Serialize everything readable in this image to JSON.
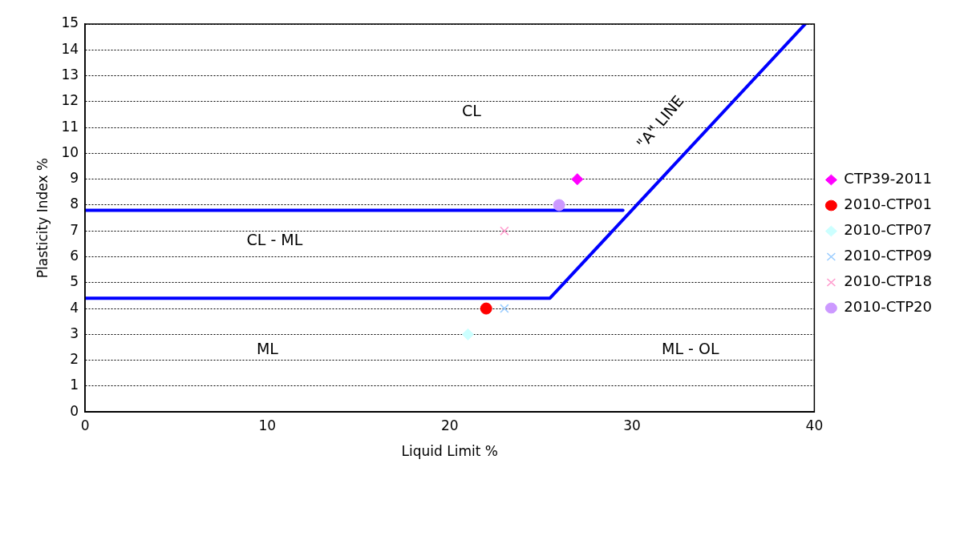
{
  "chart_data": {
    "type": "scatter",
    "xlabel": "Liquid Limit %",
    "ylabel": "Plasticity Index %",
    "xlim": [
      0,
      40
    ],
    "xticks": [
      0,
      10,
      20,
      30,
      40
    ],
    "ylim": [
      0,
      15
    ],
    "yticks": [
      0,
      1,
      2,
      3,
      4,
      5,
      6,
      7,
      8,
      9,
      10,
      11,
      12,
      13,
      14,
      15
    ],
    "grid": "y",
    "legend": "right",
    "series": [
      {
        "name": "CTP39-2011",
        "color": "#ff00ff",
        "marker": "diamond",
        "x": [
          27
        ],
        "values": [
          9
        ]
      },
      {
        "name": "2010-CTP01",
        "color": "#ff0000",
        "marker": "circle",
        "x": [
          22
        ],
        "values": [
          4
        ]
      },
      {
        "name": "2010-CTP07",
        "color": "#ccffff",
        "marker": "diamond",
        "x": [
          21
        ],
        "values": [
          3
        ]
      },
      {
        "name": "2010-CTP09",
        "color": "#99ccff",
        "marker": "cross",
        "x": [
          23
        ],
        "values": [
          4
        ]
      },
      {
        "name": "2010-CTP18",
        "color": "#ff99cc",
        "marker": "cross",
        "x": [
          23
        ],
        "values": [
          7
        ]
      },
      {
        "name": "2010-CTP20",
        "color": "#cc99ff",
        "marker": "circle",
        "x": [
          26
        ],
        "values": [
          8
        ]
      },
      {
        "type": "line",
        "color": "#0000ff",
        "marker": "none",
        "x": [
          0,
          29.5
        ],
        "values": [
          7.8,
          7.8
        ]
      },
      {
        "type": "line",
        "color": "#0000ff",
        "marker": "none",
        "x": [
          0,
          25.5,
          39.5
        ],
        "values": [
          4.4,
          4.4,
          15
        ]
      }
    ],
    "annotations": [
      "CL",
      "CL - ML",
      "ML",
      "ML - OL",
      "\"A\" LINE"
    ]
  }
}
